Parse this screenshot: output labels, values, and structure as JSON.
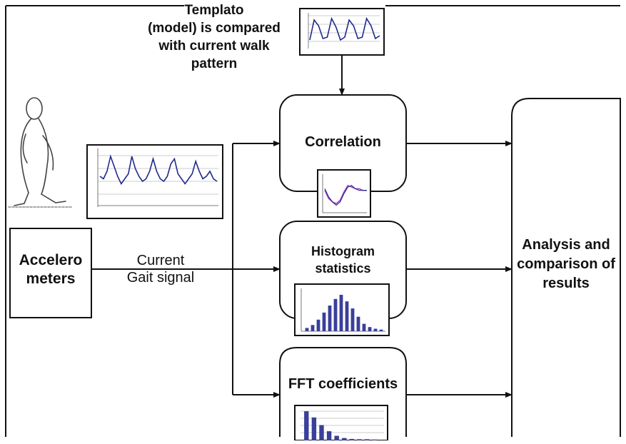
{
  "template_note": {
    "lines": [
      "Templato",
      "(model) is compared",
      "with current  walk",
      "pattern"
    ]
  },
  "input_box": {
    "lines": [
      "Accelero",
      "meters"
    ]
  },
  "signal_label": {
    "lines": [
      "Current",
      "Gait signal"
    ]
  },
  "processes": {
    "correlation": "Correlation",
    "histogram": [
      "Histogram",
      "statistics"
    ],
    "fft": "FFT coefficients"
  },
  "output_box": {
    "lines": [
      "Analysis and",
      "comparison of",
      "results"
    ]
  },
  "colors": {
    "line": "#111111",
    "signal": "#1f2a8c",
    "signal_alt": "#b040c0",
    "bar": "#3a3f9a"
  },
  "thumbnails": {
    "template_signal": [
      0.1,
      0.8,
      0.6,
      0.15,
      0.2,
      0.85,
      0.55,
      0.1,
      0.2,
      0.8,
      0.6,
      0.15,
      0.2,
      0.85,
      0.6,
      0.15,
      0.25
    ],
    "gait_signal": [
      0.5,
      0.45,
      0.6,
      0.9,
      0.7,
      0.5,
      0.35,
      0.45,
      0.55,
      0.9,
      0.65,
      0.5,
      0.4,
      0.45,
      0.6,
      0.85,
      0.6,
      0.45,
      0.4,
      0.5,
      0.75,
      0.85,
      0.55,
      0.45,
      0.35,
      0.45,
      0.55,
      0.8,
      0.6,
      0.45,
      0.5,
      0.6,
      0.45,
      0.4
    ],
    "correlation_a": [
      0.55,
      0.3,
      0.2,
      0.15,
      0.25,
      0.5,
      0.7,
      0.65,
      0.6,
      0.6,
      0.55,
      0.55
    ],
    "correlation_b": [
      0.6,
      0.35,
      0.2,
      0.1,
      0.2,
      0.45,
      0.65,
      0.7,
      0.6,
      0.55,
      0.55,
      0.55
    ],
    "histogram_bars": [
      0.08,
      0.15,
      0.28,
      0.45,
      0.62,
      0.78,
      0.88,
      0.72,
      0.55,
      0.35,
      0.18,
      0.1,
      0.06,
      0.04
    ],
    "fft_bars": [
      0.95,
      0.75,
      0.5,
      0.3,
      0.15,
      0.08,
      0.05,
      0.04,
      0.04,
      0.03
    ]
  }
}
